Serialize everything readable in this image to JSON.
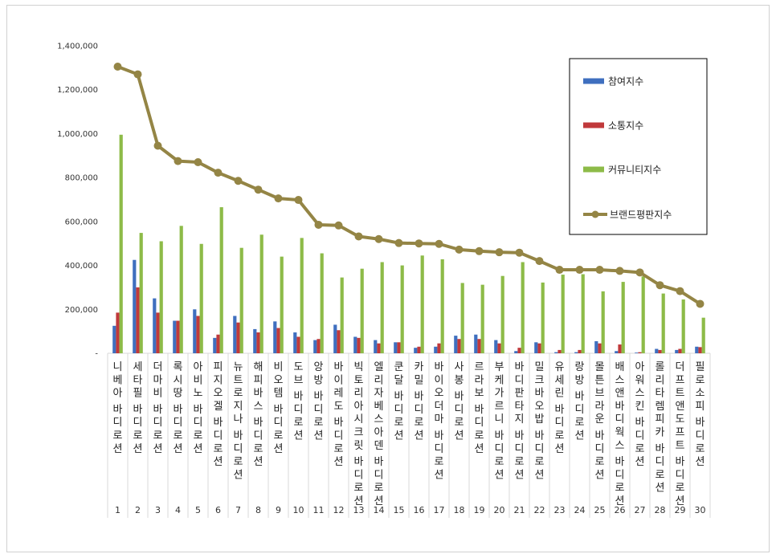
{
  "chart_data": {
    "type": "bar",
    "y_ticks": [
      "-",
      "200,000",
      "400,000",
      "600,000",
      "800,000",
      "1,000,000",
      "1,200,000",
      "1,400,000"
    ],
    "ylim": [
      0,
      1400000
    ],
    "legend_position": "top-right",
    "categories": [
      "니베아 바디로션",
      "세타필 바디로션",
      "더마비 바디로션",
      "록시땅 바디로션",
      "아비노 바디로션",
      "피지오겔 바디로션",
      "뉴트로지나 바디로션",
      "해피바스 바디로션",
      "비오템 바디로션",
      "도브 바디로션",
      "앙방 바디로션",
      "바이레도 바디로션",
      "빅토리아시크릿 바디로션",
      "엘리자베스아덴 바디로션",
      "쿤달 바디로션",
      "카밀 바디로션",
      "바이오더마 바디로션",
      "사봉 바디로션",
      "르라보 바디로션",
      "부케가르니 바디로션",
      "바디판타지 바디로션",
      "밀크바오밥 바디로션",
      "유세린 바디로션",
      "랑방 바디로션",
      "몰튼브라운 바디로션",
      "배스앤바디웍스 바디로션",
      "아워스킨 바디로션",
      "롤리타렘피카 바디로션",
      "더프트앤도프트 바디로션",
      "필로소피 바디로션"
    ],
    "ranks": [
      "1",
      "2",
      "3",
      "4",
      "5",
      "6",
      "7",
      "8",
      "9",
      "10",
      "11",
      "12",
      "13",
      "14",
      "15",
      "16",
      "17",
      "18",
      "19",
      "20",
      "21",
      "22",
      "23",
      "24",
      "25",
      "26",
      "27",
      "28",
      "29",
      "30"
    ],
    "series": [
      {
        "name": "참여지수",
        "type": "bar",
        "color": "#3f6fbf",
        "values": [
          125000,
          425000,
          250000,
          148000,
          200000,
          70000,
          170000,
          110000,
          145000,
          95000,
          60000,
          130000,
          75000,
          60000,
          50000,
          25000,
          30000,
          80000,
          85000,
          60000,
          10000,
          50000,
          5000,
          5000,
          55000,
          10000,
          3000,
          20000,
          15000,
          30000
        ]
      },
      {
        "name": "소통지수",
        "type": "bar",
        "color": "#c0393b",
        "values": [
          185000,
          300000,
          185000,
          148000,
          170000,
          85000,
          140000,
          95000,
          115000,
          75000,
          65000,
          105000,
          70000,
          45000,
          50000,
          30000,
          45000,
          65000,
          65000,
          45000,
          25000,
          45000,
          15000,
          15000,
          45000,
          40000,
          5000,
          15000,
          20000,
          28000
        ]
      },
      {
        "name": "커뮤니티지수",
        "type": "bar",
        "color": "#8dbb48",
        "values": [
          995000,
          548000,
          510000,
          580000,
          498000,
          665000,
          480000,
          540000,
          440000,
          525000,
          455000,
          345000,
          385000,
          415000,
          400000,
          445000,
          428000,
          320000,
          312000,
          352000,
          415000,
          322000,
          358000,
          360000,
          282000,
          325000,
          350000,
          272000,
          245000,
          162000
        ]
      },
      {
        "name": "브랜드평판지수",
        "type": "line",
        "color": "#948545",
        "values": [
          1305000,
          1270000,
          945000,
          875000,
          870000,
          822000,
          785000,
          745000,
          705000,
          698000,
          585000,
          582000,
          532000,
          520000,
          502000,
          500000,
          498000,
          472000,
          465000,
          460000,
          458000,
          420000,
          380000,
          380000,
          380000,
          375000,
          368000,
          310000,
          283000,
          225000
        ]
      }
    ]
  }
}
